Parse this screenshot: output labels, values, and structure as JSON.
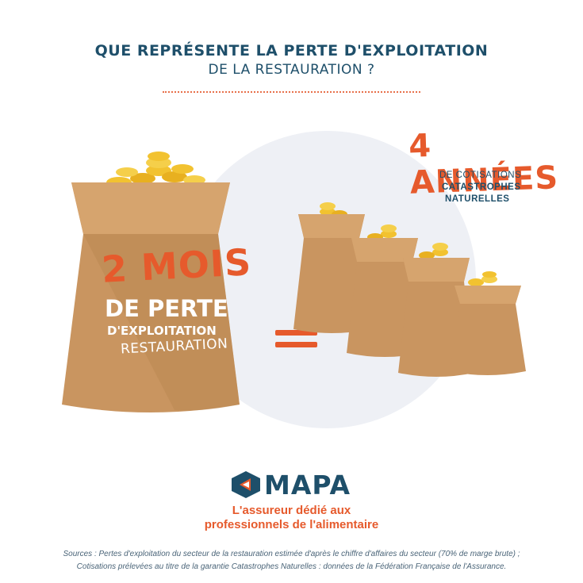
{
  "header": {
    "title_line1": "QUE REPRÉSENTE LA PERTE D'EXPLOITATION",
    "title_line2": "DE LA RESTAURATION ?"
  },
  "left_bag": {
    "months": "2 MOIS",
    "line1": "DE PERTE",
    "line2": "D'EXPLOITATION",
    "line3": "RESTAURATION"
  },
  "right_group": {
    "years": "4 ANNÉES",
    "line1": "DE COTISATIONS",
    "line2": "CATASTROPHES",
    "line3": "NATURELLES"
  },
  "brand": {
    "name": "MAPA",
    "tagline_line1": "L'assureur dédié aux",
    "tagline_line2": "professionnels de l'alimentaire"
  },
  "sources": {
    "line1": "Sources : Pertes d'exploitation du secteur de la restauration estimée d'après le chiffre d'affaires du secteur (70% de marge brute) ;",
    "line2": "Cotisations prélevées au titre de la garantie Catastrophes Naturelles : données de la Fédération Française de l'Assurance."
  },
  "colors": {
    "accent": "#e65a2c",
    "navy": "#1e4f6a",
    "bag": "#c99560",
    "coin": "#f2c230"
  }
}
